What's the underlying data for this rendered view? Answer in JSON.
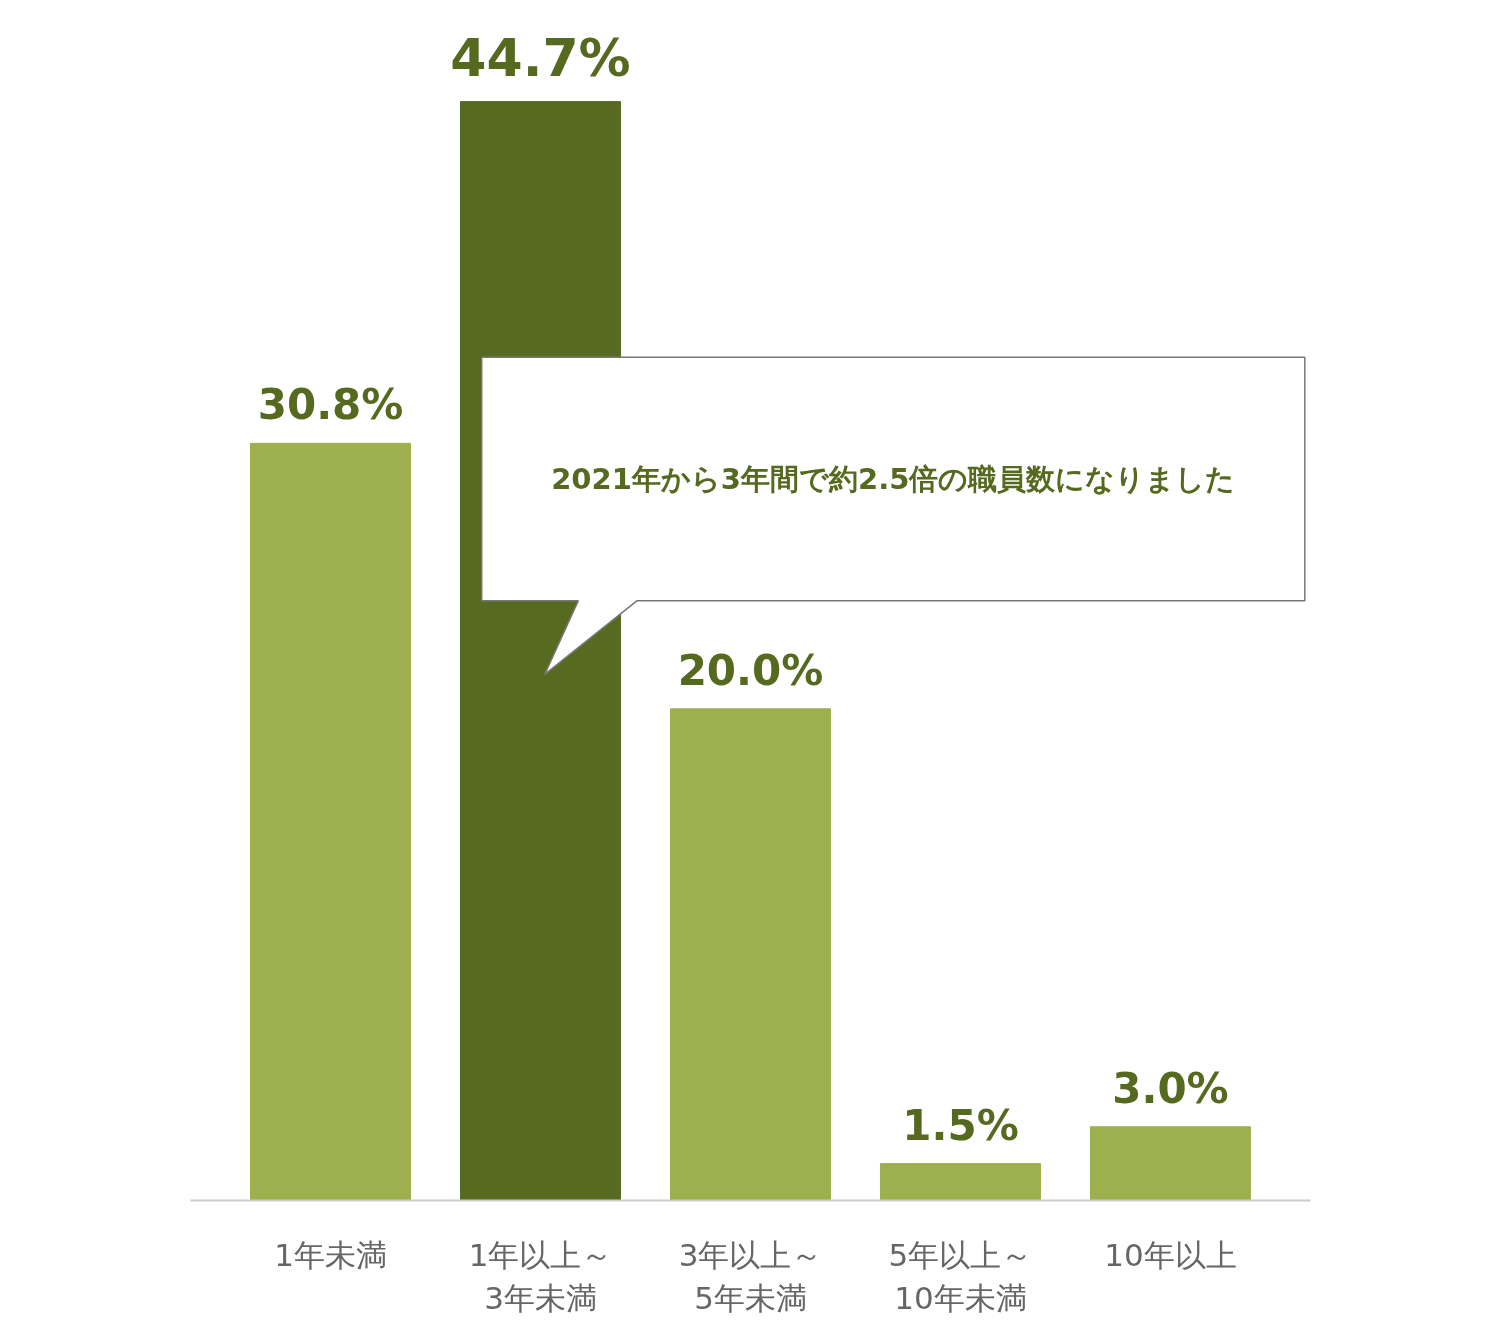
{
  "chart_data": {
    "type": "bar",
    "categories": [
      "1年未満",
      "1年以上～\n3年未満",
      "3年以上～\n5年未満",
      "5年以上～\n10年未満",
      "10年以上"
    ],
    "values": [
      30.8,
      44.7,
      20.0,
      1.5,
      3.0
    ],
    "colors": [
      "#9db04d",
      "#566a20",
      "#9db04d",
      "#9db04d",
      "#9db04d"
    ],
    "value_labels": [
      "30.8%",
      "44.7%",
      "20.0%",
      "1.5%",
      "3.0%"
    ],
    "annotations": [
      "2021年から3年間で約2.5倍の職員数になりました"
    ],
    "grid": false
  }
}
